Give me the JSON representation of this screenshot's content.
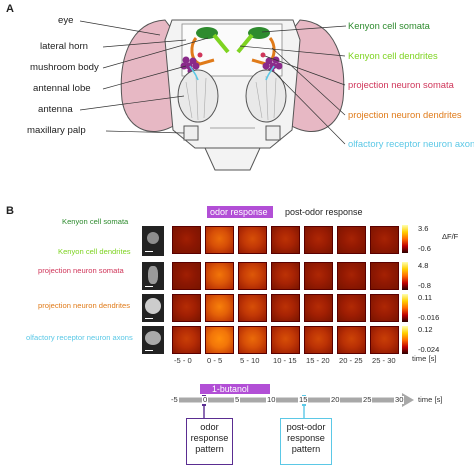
{
  "panel_a": {
    "letter": "A",
    "left_labels": [
      "eye",
      "lateral horn",
      "mushroom body",
      "antennal lobe",
      "antenna",
      "maxillary palp"
    ],
    "right_labels": [
      {
        "text": "Kenyon cell somata",
        "color": "#2e8b2e"
      },
      {
        "text": "Kenyon cell dendrites",
        "color": "#7ed321"
      },
      {
        "text": "projection neuron somata",
        "color": "#d0365a"
      },
      {
        "text": "projection neuron dendrites",
        "color": "#e07b1a"
      },
      {
        "text": "olfactory receptor neuron axons",
        "color": "#5bc8e6"
      }
    ]
  },
  "panel_b": {
    "letter": "B",
    "odor_response_label": "odor response",
    "post_odor_label": "post-odor response",
    "rows": [
      {
        "label": "Kenyon cell somata",
        "color": "#2e8b2e",
        "max": "3.6",
        "min": "-0.6"
      },
      {
        "label": "Kenyon cell dendrites",
        "color": "#7ed321",
        "max": "",
        "min": ""
      },
      {
        "label": "projection neuron somata",
        "color": "#d0365a",
        "max": "4.8",
        "min": "-0.8"
      },
      {
        "label": "projection neuron dendrites",
        "color": "#e07b1a",
        "max": "0.11",
        "min": "-0.016"
      },
      {
        "label": "olfactory receptor neuron axons",
        "color": "#5bc8e6",
        "max": "0.12",
        "min": "-0.024"
      }
    ],
    "dff_label": "ΔF/F",
    "time_bins": [
      "-5 - 0",
      "0 - 5",
      "5 - 10",
      "10 - 15",
      "15 - 20",
      "20 - 25",
      "25 - 30"
    ],
    "time_unit": "time [s]",
    "tile_intensity": [
      [
        0.15,
        0.7,
        0.55,
        0.35,
        0.25,
        0.2,
        0.2
      ],
      [
        0.15,
        0.75,
        0.6,
        0.35,
        0.25,
        0.2,
        0.18
      ],
      [
        0.3,
        0.8,
        0.55,
        0.35,
        0.3,
        0.28,
        0.25
      ],
      [
        0.45,
        0.9,
        0.7,
        0.55,
        0.5,
        0.48,
        0.45
      ]
    ],
    "colors": {
      "odor_bar": "#b24fd6",
      "post_box": "#5bc8e6",
      "odor_box": "#5a2d91",
      "axis": "#a8a8a8"
    }
  },
  "timeline": {
    "stimulus_label": "1-butanol",
    "ticks": [
      "-5",
      "0",
      "5",
      "10",
      "15",
      "20",
      "25",
      "30"
    ],
    "unit": "time [s]",
    "odor_box": [
      "odor",
      "response",
      "pattern"
    ],
    "post_box": [
      "post-odor",
      "response",
      "pattern"
    ]
  }
}
